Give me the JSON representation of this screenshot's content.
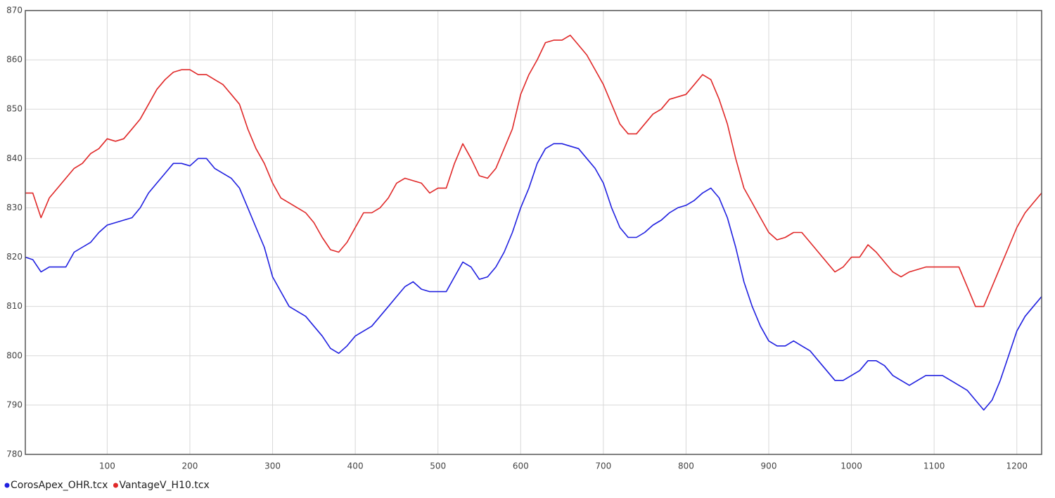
{
  "chart_data": {
    "type": "line",
    "x": [
      1,
      10,
      20,
      30,
      40,
      50,
      60,
      70,
      80,
      90,
      100,
      110,
      120,
      130,
      140,
      150,
      160,
      170,
      180,
      190,
      200,
      210,
      220,
      230,
      240,
      250,
      260,
      270,
      280,
      290,
      300,
      310,
      320,
      330,
      340,
      350,
      360,
      370,
      380,
      390,
      400,
      410,
      420,
      430,
      440,
      450,
      460,
      470,
      480,
      490,
      500,
      510,
      520,
      530,
      540,
      550,
      560,
      570,
      580,
      590,
      600,
      610,
      620,
      630,
      640,
      650,
      660,
      670,
      680,
      690,
      700,
      710,
      720,
      730,
      740,
      750,
      760,
      770,
      780,
      790,
      800,
      810,
      820,
      830,
      840,
      850,
      860,
      870,
      880,
      890,
      900,
      910,
      920,
      930,
      940,
      950,
      960,
      970,
      980,
      990,
      1000,
      1010,
      1020,
      1030,
      1040,
      1050,
      1060,
      1070,
      1080,
      1090,
      1100,
      1110,
      1120,
      1130,
      1140,
      1150,
      1160,
      1170,
      1180,
      1190,
      1200,
      1210,
      1220,
      1230
    ],
    "series": [
      {
        "name": "CorosApex_OHR.tcx",
        "color": "#2020e0",
        "values": [
          820,
          819.5,
          817,
          818,
          818,
          818,
          821,
          822,
          823,
          825,
          826.5,
          827,
          827.5,
          828,
          830,
          833,
          835,
          837,
          839,
          839,
          838.5,
          840,
          840,
          838,
          837,
          836,
          834,
          830,
          826,
          822,
          816,
          813,
          810,
          809,
          808,
          806,
          804,
          801.5,
          800.5,
          802,
          804,
          805,
          806,
          808,
          810,
          812,
          814,
          815,
          813.5,
          813,
          813,
          813,
          816,
          819,
          818,
          815.5,
          816,
          818,
          821,
          825,
          830,
          834,
          839,
          842,
          843,
          843,
          842.5,
          842,
          840,
          838,
          835,
          830,
          826,
          824,
          824,
          825,
          826.5,
          827.5,
          829,
          830,
          830.5,
          831.5,
          833,
          834,
          832,
          828,
          822,
          815,
          810,
          806,
          803,
          802,
          802,
          803,
          802,
          801,
          799,
          797,
          795,
          795,
          796,
          797,
          799,
          799,
          798,
          796,
          795,
          794,
          795,
          796,
          796,
          796,
          795,
          794,
          793,
          791,
          789,
          791,
          795,
          800,
          805,
          808,
          810,
          812
        ]
      },
      {
        "name": "VantageV_H10.tcx",
        "color": "#e02828",
        "values": [
          833,
          833,
          828,
          832,
          834,
          836,
          838,
          839,
          841,
          842,
          844,
          843.5,
          844,
          846,
          848,
          851,
          854,
          856,
          857.5,
          858,
          858,
          857,
          857,
          856,
          855,
          853,
          851,
          846,
          842,
          839,
          835,
          832,
          831,
          830,
          829,
          827,
          824,
          821.5,
          821,
          823,
          826,
          829,
          829,
          830,
          832,
          835,
          836,
          835.5,
          835,
          833,
          834,
          834,
          839,
          843,
          840,
          836.5,
          836,
          838,
          842,
          846,
          853,
          857,
          860,
          863.5,
          864,
          864,
          865,
          863,
          861,
          858,
          855,
          851,
          847,
          845,
          845,
          847,
          849,
          850,
          852,
          852.5,
          853,
          855,
          857,
          856,
          852,
          847,
          840,
          834,
          831,
          828,
          825,
          823.5,
          824,
          825,
          825,
          823,
          821,
          819,
          817,
          818,
          820,
          820,
          822.5,
          821,
          819,
          817,
          816,
          817,
          817.5,
          818,
          818,
          818,
          818,
          818,
          814,
          810,
          810,
          814,
          818,
          822,
          826,
          829,
          831,
          833
        ]
      }
    ],
    "xlim": [
      1,
      1230
    ],
    "ylim": [
      780,
      870
    ],
    "xticks": [
      100,
      200,
      300,
      400,
      500,
      600,
      700,
      800,
      900,
      1000,
      1100,
      1200
    ],
    "yticks": [
      780,
      790,
      800,
      810,
      820,
      830,
      840,
      850,
      860,
      870
    ],
    "grid": true,
    "legend": "bottom-left"
  }
}
